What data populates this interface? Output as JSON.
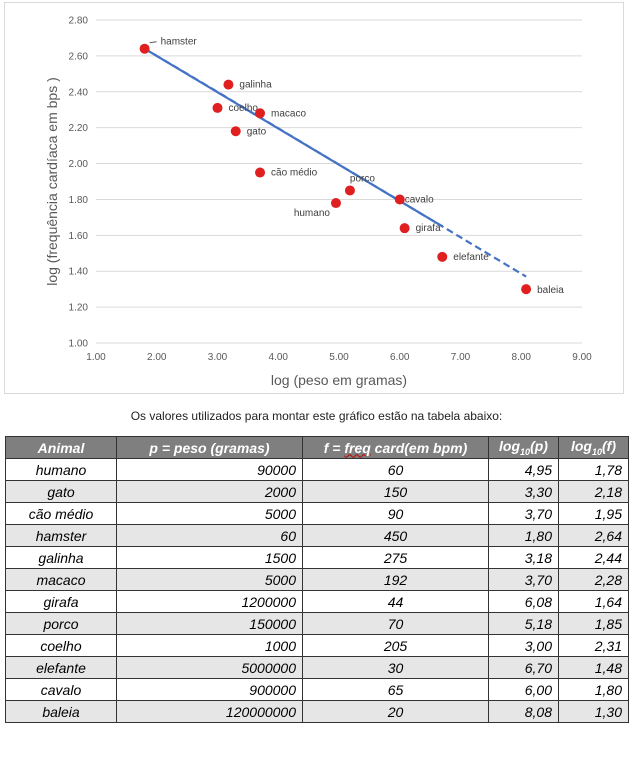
{
  "chart_data": {
    "type": "scatter",
    "xlabel": "log (peso em gramas)",
    "ylabel": "log (frequência cardíaca em bps )",
    "xlim": [
      1.0,
      9.0
    ],
    "ylim": [
      1.0,
      2.8
    ],
    "x_ticks": [
      "1.00",
      "2.00",
      "3.00",
      "4.00",
      "5.00",
      "6.00",
      "7.00",
      "8.00",
      "9.00"
    ],
    "y_ticks": [
      "1.00",
      "1.20",
      "1.40",
      "1.60",
      "1.80",
      "2.00",
      "2.20",
      "2.40",
      "2.60",
      "2.80"
    ],
    "grid": "horizontal",
    "points": [
      {
        "label": "hamster",
        "x": 1.8,
        "y": 2.64
      },
      {
        "label": "galinha",
        "x": 3.18,
        "y": 2.44
      },
      {
        "label": "coelho",
        "x": 3.0,
        "y": 2.31
      },
      {
        "label": "macaco",
        "x": 3.7,
        "y": 2.28
      },
      {
        "label": "gato",
        "x": 3.3,
        "y": 2.18
      },
      {
        "label": "cão médio",
        "x": 3.7,
        "y": 1.95
      },
      {
        "label": "porco",
        "x": 5.18,
        "y": 1.85
      },
      {
        "label": "humano",
        "x": 4.95,
        "y": 1.78
      },
      {
        "label": "cavalo",
        "x": 6.0,
        "y": 1.8
      },
      {
        "label": "girafa",
        "x": 6.08,
        "y": 1.64
      },
      {
        "label": "elefante",
        "x": 6.7,
        "y": 1.48
      },
      {
        "label": "baleia",
        "x": 8.08,
        "y": 1.3
      }
    ],
    "trendline": {
      "solid": [
        [
          1.8,
          2.64
        ],
        [
          6.7,
          1.65
        ]
      ],
      "dashed": [
        [
          1.8,
          2.64
        ],
        [
          2.55,
          2.49
        ],
        [
          6.7,
          1.65
        ],
        [
          8.08,
          1.37
        ]
      ]
    },
    "colors": {
      "point": "#e02020",
      "line": "#4472c4",
      "grid": "#d9d9d9",
      "text": "#595959"
    }
  },
  "caption": "Os valores utilizados para montar este gráfico estão na tabela abaixo:",
  "table": {
    "headers": [
      "Animal",
      "p = peso (gramas)",
      "f = ",
      "freq",
      " card(em bpm)",
      "log",
      "10",
      "(p)",
      "log",
      "10",
      "(f)"
    ],
    "rows": [
      [
        "humano",
        "90000",
        "60",
        "4,95",
        "1,78"
      ],
      [
        "gato",
        "2000",
        "150",
        "3,30",
        "2,18"
      ],
      [
        "cão médio",
        "5000",
        "90",
        "3,70",
        "1,95"
      ],
      [
        "hamster",
        "60",
        "450",
        "1,80",
        "2,64"
      ],
      [
        "galinha",
        "1500",
        "275",
        "3,18",
        "2,44"
      ],
      [
        "macaco",
        "5000",
        "192",
        "3,70",
        "2,28"
      ],
      [
        "girafa",
        "1200000",
        "44",
        "6,08",
        "1,64"
      ],
      [
        "porco",
        "150000",
        "70",
        "5,18",
        "1,85"
      ],
      [
        "coelho",
        "1000",
        "205",
        "3,00",
        "2,31"
      ],
      [
        "elefante",
        "5000000",
        "30",
        "6,70",
        "1,48"
      ],
      [
        "cavalo",
        "900000",
        "65",
        "6,00",
        "1,80"
      ],
      [
        "baleia",
        "120000000",
        "20",
        "8,08",
        "1,30"
      ]
    ]
  }
}
